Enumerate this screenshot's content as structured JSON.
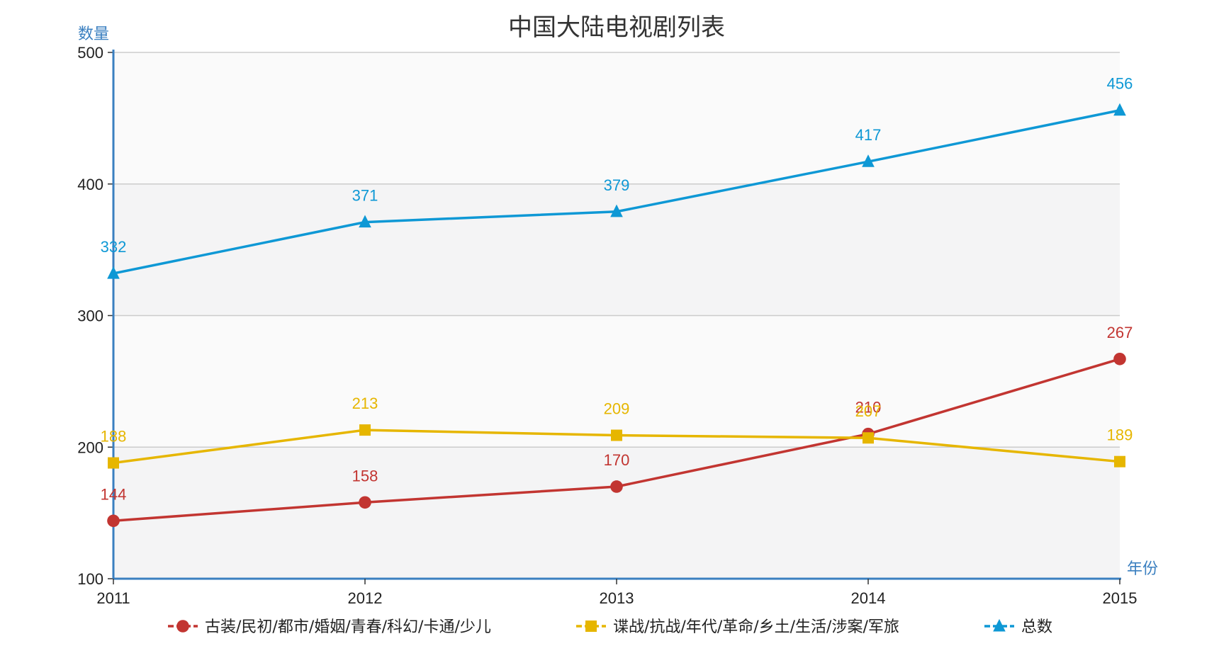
{
  "chart_data": {
    "type": "line",
    "title": "中国大陆电视剧列表",
    "xlabel": "年份",
    "ylabel": "数量",
    "categories": [
      "2011",
      "2012",
      "2013",
      "2014",
      "2015"
    ],
    "y_ticks": [
      "100",
      "200",
      "300",
      "400",
      "500"
    ],
    "ylim": [
      100,
      500
    ],
    "grid": true,
    "legend_position": "bottom",
    "series": [
      {
        "name": "古装/民初/都市/婚姻/青春/科幻/卡通/少儿",
        "color": "#c23531",
        "marker": "circle",
        "values": [
          144,
          158,
          170,
          210,
          267
        ]
      },
      {
        "name": "谍战/抗战/年代/革命/乡土/生活/涉案/军旅",
        "color": "#e6b600",
        "marker": "square",
        "values": [
          188,
          213,
          209,
          207,
          189
        ]
      },
      {
        "name": "总数",
        "color": "#0e98d5",
        "marker": "triangle",
        "values": [
          332,
          371,
          379,
          417,
          456
        ]
      }
    ]
  }
}
